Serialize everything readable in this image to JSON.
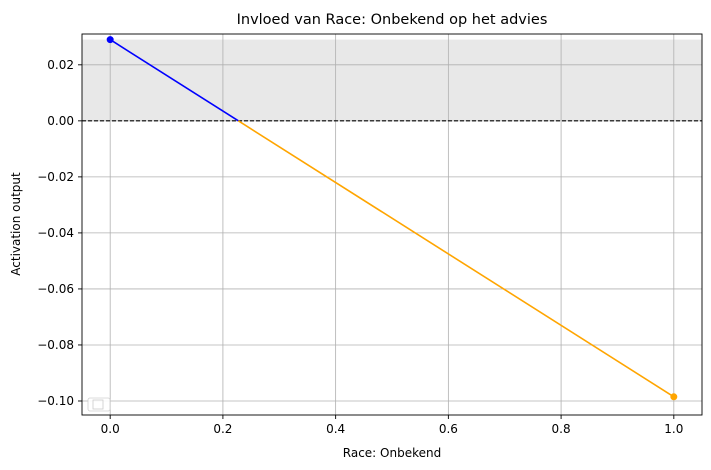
{
  "chart_data": {
    "type": "line",
    "title": "Invloed van Race: Onbekend op het advies",
    "xlabel": "Race: Onbekend",
    "ylabel": "Activation output",
    "xlim": [
      -0.05,
      1.05
    ],
    "ylim": [
      -0.105,
      0.031
    ],
    "x_ticks": [
      0.0,
      0.2,
      0.4,
      0.6,
      0.8,
      1.0
    ],
    "x_tick_labels": [
      "0.0",
      "0.2",
      "0.4",
      "0.6",
      "0.8",
      "1.0"
    ],
    "y_ticks": [
      0.02,
      0.0,
      -0.02,
      -0.04,
      -0.06,
      -0.08,
      -0.1
    ],
    "y_tick_labels": [
      "0.02",
      "0.00",
      "−0.02",
      "−0.04",
      "−0.06",
      "−0.08",
      "−0.10"
    ],
    "grid": true,
    "legend": "lower-left",
    "legend_entries": [],
    "reference_line": {
      "y": 0.0,
      "style": "dashed",
      "color": "#000000"
    },
    "shaded_band": {
      "y_from": 0.0,
      "y_to": 0.029,
      "color": "#e8e8e8"
    },
    "points": [
      {
        "x": 0.0,
        "y": 0.029
      },
      {
        "x": 1.0,
        "y": -0.0985
      }
    ],
    "segments": [
      {
        "from_x": 0.0,
        "from_y": 0.029,
        "to_x": 0.2274,
        "to_y": 0.0,
        "color": "#0000ff"
      },
      {
        "from_x": 0.2274,
        "from_y": 0.0,
        "to_x": 1.0,
        "to_y": -0.0985,
        "color": "#ffa500"
      }
    ],
    "marker_colors": [
      "#0000ff",
      "#ffa500"
    ]
  }
}
